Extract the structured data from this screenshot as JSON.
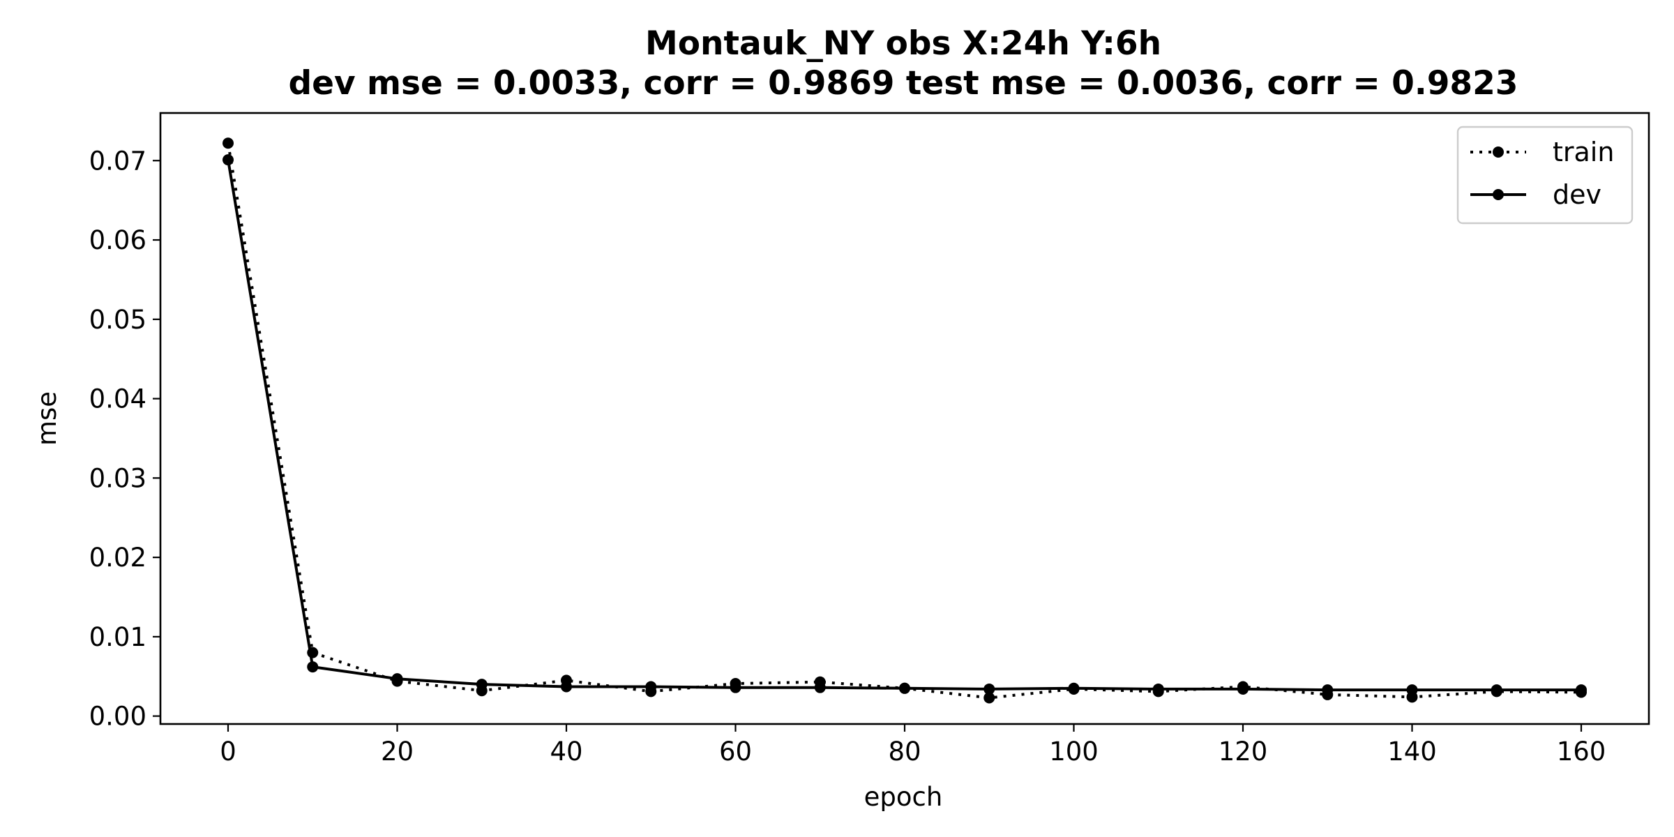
{
  "chart_data": {
    "type": "line",
    "title": "Montauk_NY   obs   X:24h   Y:6h",
    "subtitle": "dev mse = 0.0033, corr = 0.9869   test mse = 0.0036, corr = 0.9823",
    "xlabel": "epoch",
    "ylabel": "mse",
    "xlim": [
      -8,
      168
    ],
    "ylim": [
      -0.001,
      0.076
    ],
    "xticks": [
      0,
      20,
      40,
      60,
      80,
      100,
      120,
      140,
      160
    ],
    "xtick_labels": [
      "0",
      "20",
      "40",
      "60",
      "80",
      "100",
      "120",
      "140",
      "160"
    ],
    "yticks": [
      0.0,
      0.01,
      0.02,
      0.03,
      0.04,
      0.05,
      0.06,
      0.07
    ],
    "ytick_labels": [
      "0.00",
      "0.01",
      "0.02",
      "0.03",
      "0.04",
      "0.05",
      "0.06",
      "0.07"
    ],
    "grid": false,
    "legend_position": "top-right",
    "x": [
      0,
      10,
      20,
      30,
      40,
      50,
      60,
      70,
      80,
      90,
      100,
      110,
      120,
      130,
      140,
      150,
      160
    ],
    "series": [
      {
        "name": "train",
        "style": "dotted",
        "color": "#000000",
        "values": [
          0.0722,
          0.008,
          0.0044,
          0.0032,
          0.0045,
          0.0031,
          0.0041,
          0.0043,
          0.0035,
          0.0023,
          0.0034,
          0.0031,
          0.0037,
          0.0027,
          0.0024,
          0.0031,
          0.003
        ]
      },
      {
        "name": "dev",
        "style": "solid",
        "color": "#000000",
        "values": [
          0.0701,
          0.0062,
          0.0047,
          0.004,
          0.0037,
          0.0037,
          0.0036,
          0.0036,
          0.0035,
          0.0034,
          0.0035,
          0.0034,
          0.0034,
          0.0033,
          0.0033,
          0.0033,
          0.0033
        ]
      }
    ]
  }
}
